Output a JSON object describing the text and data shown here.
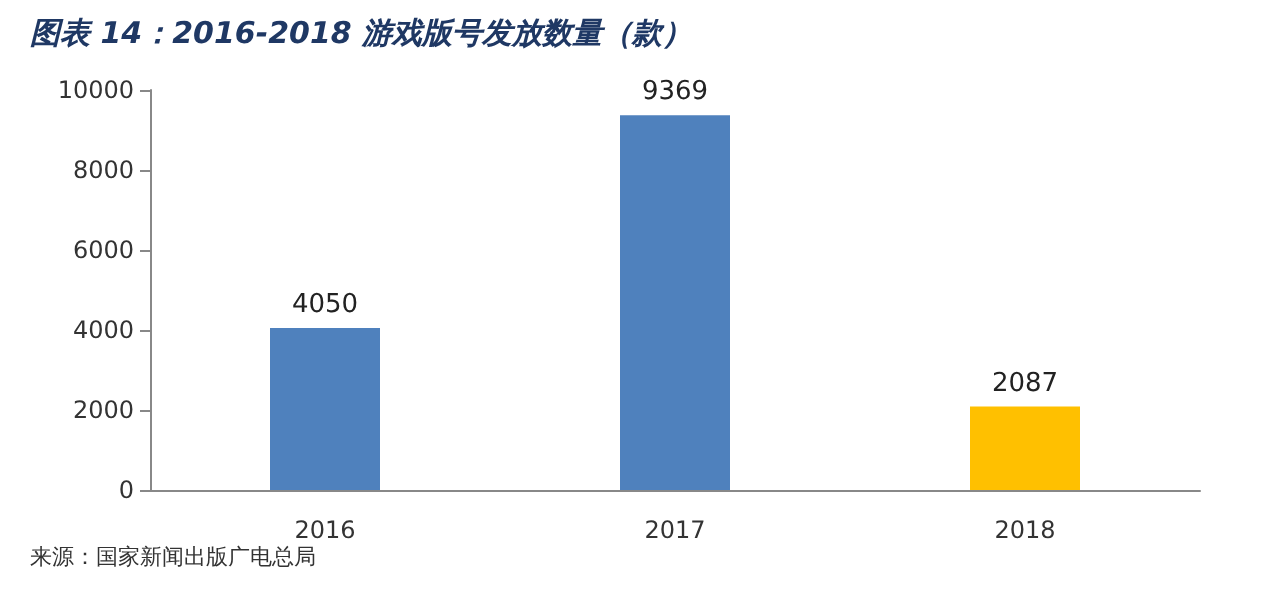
{
  "chart_data": {
    "type": "bar",
    "title": "图表 14：2016-2018 游戏版号发放数量（款）",
    "categories": [
      "2016",
      "2017",
      "2018"
    ],
    "values": [
      4050,
      9369,
      2087
    ],
    "colors": [
      "#4f81bd",
      "#4f81bd",
      "#ffc000"
    ],
    "ylim": [
      0,
      10000
    ],
    "yticks": [
      0,
      2000,
      4000,
      6000,
      8000,
      10000
    ],
    "grid": false,
    "data_labels": true,
    "annotations": [
      "来源：国家新闻出版广电总局"
    ]
  }
}
